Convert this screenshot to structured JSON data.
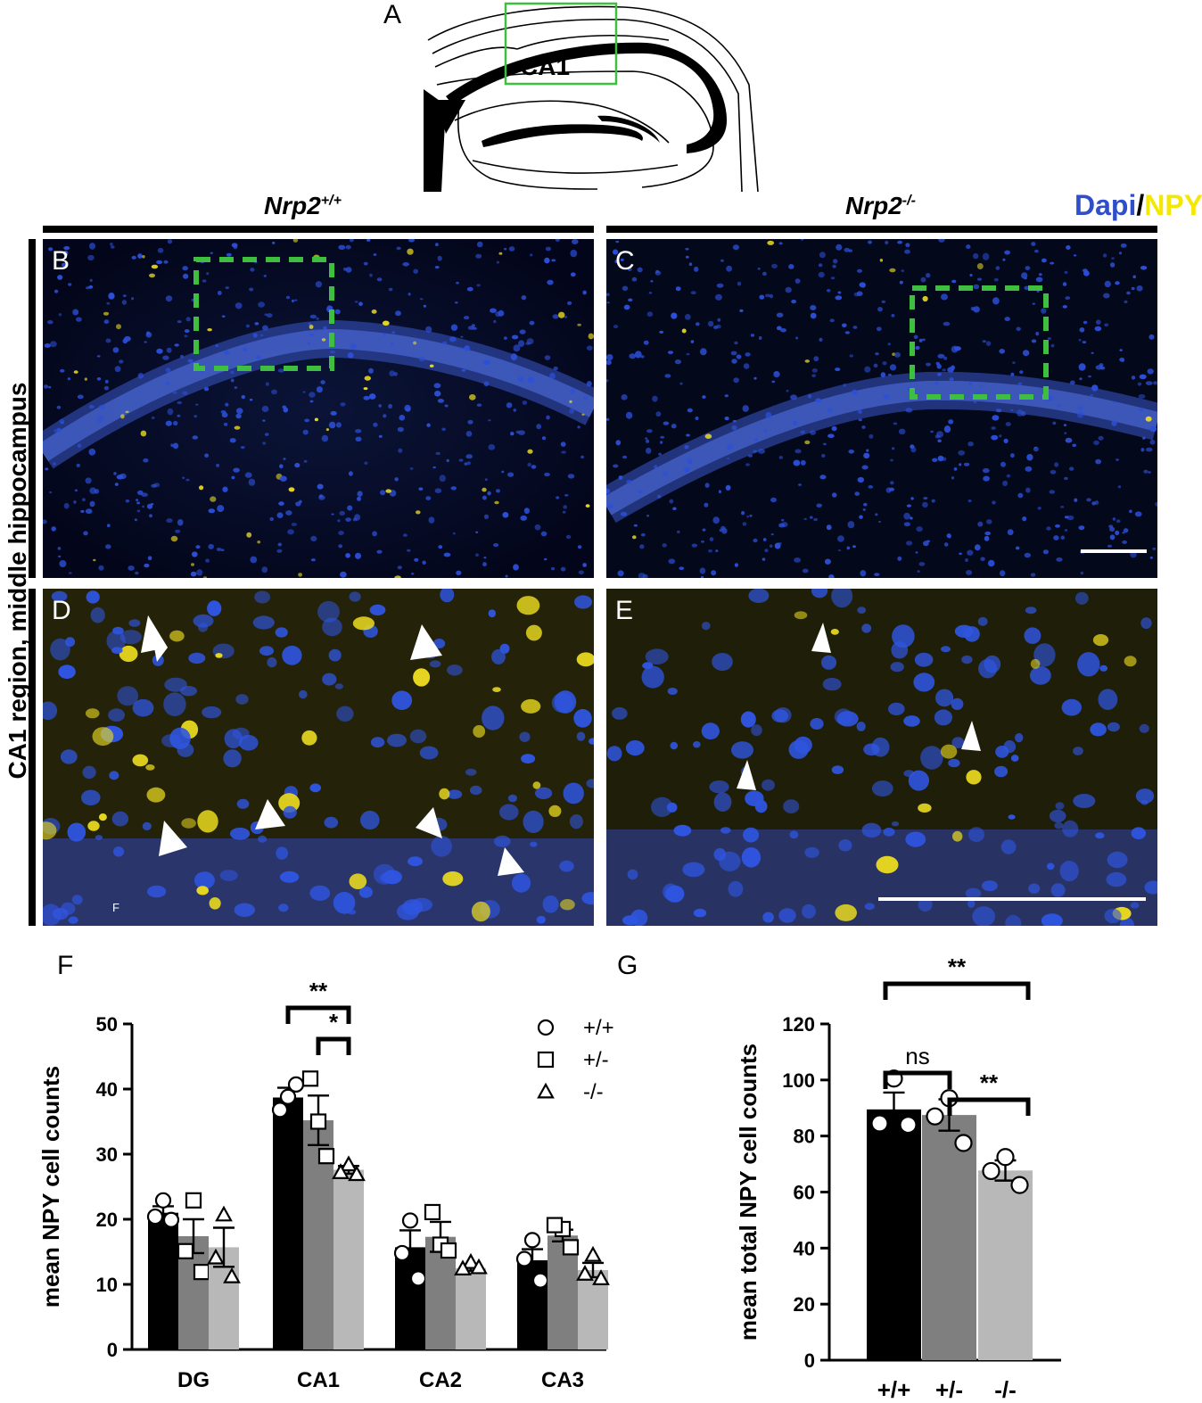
{
  "panel_A": {
    "letter": "A",
    "region_label": "CA1"
  },
  "header": {
    "wt_label_base": "Nrp2",
    "wt_label_sup": "+/+",
    "ko_label_base": "Nrp2",
    "ko_label_sup": "-/-",
    "stain_dapi": "Dapi",
    "stain_slash": "/",
    "stain_npy": "NPY",
    "stain_colors": {
      "dapi": "#2e4fc9",
      "npy": "#f5e800"
    },
    "side_label": "CA1 region, middle hippocampus"
  },
  "micro_panels": {
    "B": {
      "letter": "B"
    },
    "C": {
      "letter": "C"
    },
    "D": {
      "letter": "D",
      "corner_mark": "F"
    },
    "E": {
      "letter": "E"
    }
  },
  "colors": {
    "wt": "#000000",
    "het": "#7f7f7f",
    "ko": "#b8b8b8",
    "roi": "#3fbf3f"
  },
  "chart_data": [
    {
      "panel": "F",
      "type": "bar",
      "ylabel": "mean NPY cell counts",
      "ylim": [
        0,
        50
      ],
      "yticks": [
        0,
        10,
        20,
        30,
        40,
        50
      ],
      "categories": [
        "DG",
        "CA1",
        "CA2",
        "CA3"
      ],
      "legend": [
        {
          "symbol": "circle",
          "label": "+/+"
        },
        {
          "symbol": "square",
          "label": "+/-"
        },
        {
          "symbol": "triangle",
          "label": "-/-"
        }
      ],
      "series": [
        {
          "name": "+/+",
          "values": [
            21,
            38.7,
            15.7,
            13.7
          ],
          "sem": [
            1,
            1.5,
            2.6,
            1.7
          ],
          "points": [
            [
              22.9,
              20.4,
              19.9
            ],
            [
              38.8,
              36.8,
              40.7
            ],
            [
              19.8,
              14.8,
              10.9
            ],
            [
              16.8,
              13.9,
              10.6
            ]
          ]
        },
        {
          "name": "+/-",
          "values": [
            17.4,
            35.2,
            17.3,
            17.5
          ],
          "sem": [
            2.6,
            3.8,
            2.3,
            0.9
          ],
          "points": [
            [
              22.9,
              15.1,
              11.9
            ],
            [
              35,
              41.6,
              29.7
            ],
            [
              16.1,
              21.1,
              15.2
            ],
            [
              18.5,
              19.1,
              15.7
            ]
          ]
        },
        {
          "name": "-/-",
          "values": [
            15.7,
            27.6,
            12.5,
            12.2
          ],
          "sem": [
            3,
            0.6,
            0.4,
            1.1
          ],
          "points": [
            [
              20.7,
              14.1,
              11.2
            ],
            [
              28.4,
              27.2,
              26.9
            ],
            [
              13.4,
              12.4,
              12.6
            ],
            [
              14.5,
              11.6,
              10.9
            ]
          ]
        }
      ],
      "significance": [
        {
          "label": "**",
          "from": "+/+",
          "to": "-/-",
          "category": "CA1"
        },
        {
          "label": "*",
          "from": "+/-",
          "to": "-/-",
          "category": "CA1"
        }
      ]
    },
    {
      "panel": "G",
      "type": "bar",
      "ylabel": "mean total NPY cell counts",
      "ylim": [
        0,
        120
      ],
      "yticks": [
        0,
        20,
        40,
        60,
        80,
        100,
        120
      ],
      "categories": [
        "+/+",
        "+/-",
        "-/-"
      ],
      "values": [
        89.5,
        87.5,
        67.7
      ],
      "sem": [
        6,
        5.6,
        3.6
      ],
      "points": [
        [
          100.5,
          84.5,
          84
        ],
        [
          93.5,
          87,
          77.5
        ],
        [
          72.5,
          67.5,
          62.5
        ]
      ],
      "significance": [
        {
          "label": "ns",
          "from": "+/+",
          "to": "+/-"
        },
        {
          "label": "**",
          "from": "+/-",
          "to": "-/-"
        },
        {
          "label": "**",
          "from": "+/+",
          "to": "-/-"
        }
      ]
    }
  ]
}
